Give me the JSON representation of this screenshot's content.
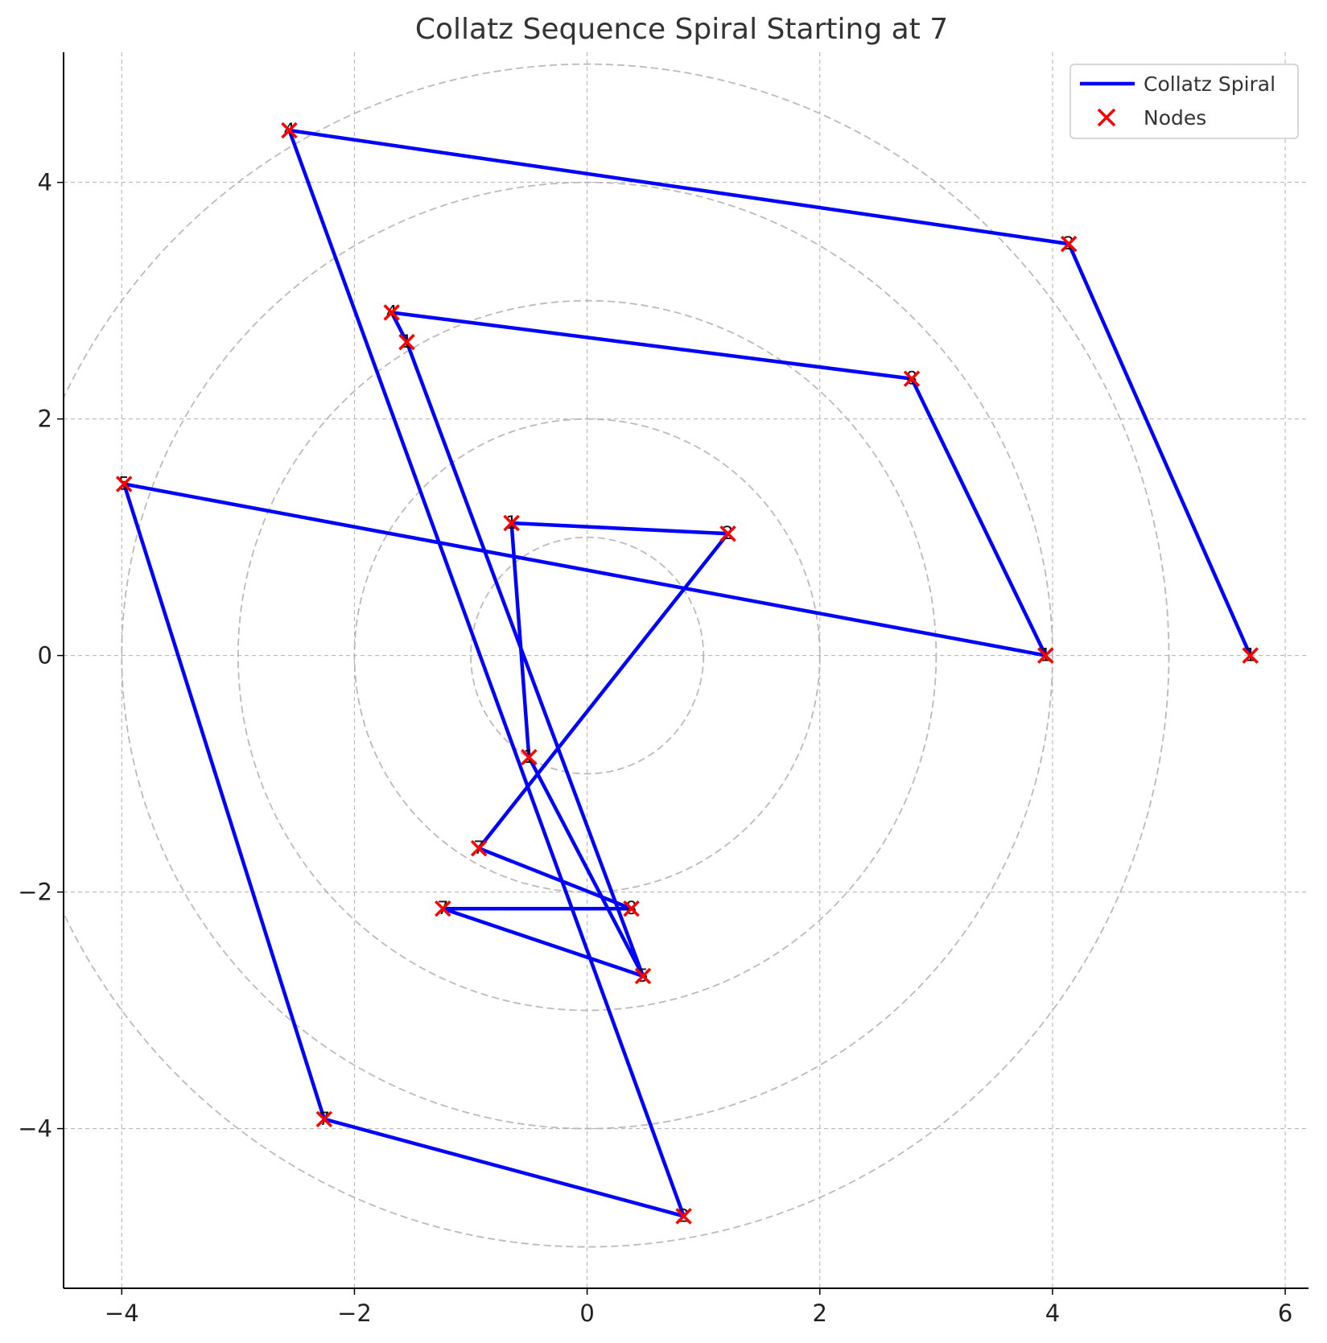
{
  "chart_data": {
    "type": "line",
    "title": "Collatz Sequence Spiral Starting at 7",
    "xlabel": "",
    "ylabel": "",
    "xlim": [
      -4.5,
      6.2
    ],
    "ylim": [
      -5.35,
      5.1
    ],
    "x_ticks": [
      -4,
      -2,
      0,
      2,
      4,
      6
    ],
    "y_ticks": [
      -4,
      -2,
      0,
      2,
      4
    ],
    "x_tick_labels": [
      "−4",
      "−2",
      "0",
      "2",
      "4",
      "6"
    ],
    "y_tick_labels": [
      "−4",
      "−2",
      "0",
      "2",
      "4"
    ],
    "grid": true,
    "reference_circles": [
      1,
      2,
      3,
      4,
      5
    ],
    "legend_position": "top-right",
    "colors": {
      "line": "#0000ff",
      "nodes": "#ff0000",
      "grid": "#b0b0b0",
      "circles": "#bbbbbb"
    },
    "series": [
      {
        "name": "Collatz Spiral",
        "kind": "line",
        "points": [
          {
            "x": -0.93,
            "y": -1.63,
            "label": "7"
          },
          {
            "x": 1.21,
            "y": 1.03,
            "label": "2"
          },
          {
            "x": -0.65,
            "y": 1.12,
            "label": "1"
          },
          {
            "x": -0.5,
            "y": -0.86,
            "label": "1"
          },
          {
            "x": 0.48,
            "y": -2.71,
            "label": "5"
          },
          {
            "x": -1.55,
            "y": 2.65,
            "label": "1"
          },
          {
            "x": -1.68,
            "y": 2.9,
            "label": "4"
          },
          {
            "x": 2.79,
            "y": 2.34,
            "label": "8"
          },
          {
            "x": 3.94,
            "y": 0.0,
            "label": "1"
          },
          {
            "x": -3.98,
            "y": 1.45,
            "label": "5"
          },
          {
            "x": -2.26,
            "y": -3.92,
            "label": "7"
          },
          {
            "x": 0.83,
            "y": -4.74,
            "label": "2"
          },
          {
            "x": -2.56,
            "y": 4.44,
            "label": "4"
          },
          {
            "x": 4.14,
            "y": 3.48,
            "label": "2"
          },
          {
            "x": 5.7,
            "y": 0.0,
            "label": "1"
          }
        ]
      },
      {
        "name": "Collatz Spiral",
        "kind": "line",
        "points": [
          {
            "x": -0.93,
            "y": -1.63
          },
          {
            "x": 0.38,
            "y": -2.14,
            "label": "8"
          },
          {
            "x": -1.24,
            "y": -2.14,
            "label": "7"
          },
          {
            "x": 0.48,
            "y": -2.71
          }
        ]
      }
    ],
    "legend": [
      {
        "label": "Collatz Spiral",
        "marker": "line"
      },
      {
        "label": "Nodes",
        "marker": "x"
      }
    ]
  }
}
